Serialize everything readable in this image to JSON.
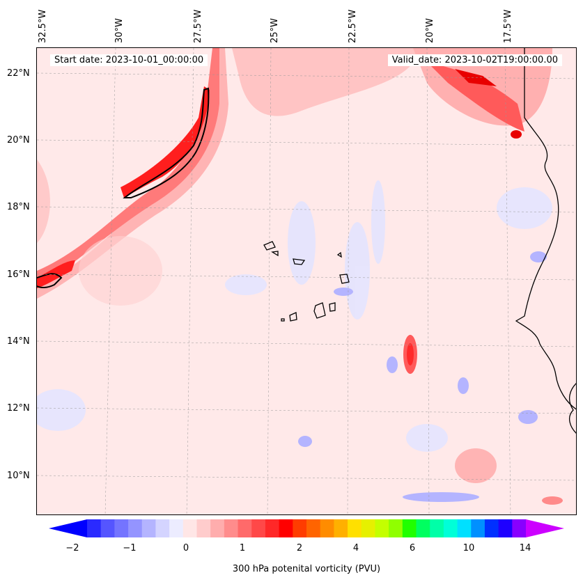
{
  "map": {
    "longitude_labels": [
      "32.5°W",
      "30°W",
      "27.5°W",
      "25°W",
      "22.5°W",
      "20°W",
      "17.5°W"
    ],
    "latitude_labels": [
      "22°N",
      "20°N",
      "18°N",
      "16°N",
      "14°N",
      "12°N",
      "10°N"
    ],
    "start_date": "Start date: 2023-10-01_00:00:00",
    "valid_date": "Valid_date: 2023-10-02T19:00:00.00"
  },
  "colorbar": {
    "label": "300 hPa potenital vorticity (PVU)",
    "ticks": [
      "−2",
      "−1",
      "0",
      "1",
      "2",
      "4",
      "6",
      "10",
      "14"
    ],
    "colors": [
      "#0000ff",
      "#2a2aff",
      "#5555ff",
      "#7474ff",
      "#9494ff",
      "#b4b4ff",
      "#d4d4ff",
      "#ececff",
      "#ffe6e6",
      "#ffcccc",
      "#ffadad",
      "#ff8c8c",
      "#ff6a6a",
      "#ff4848",
      "#ff2828",
      "#ff0000",
      "#ff3c00",
      "#ff6400",
      "#ff8c00",
      "#ffb000",
      "#ffe000",
      "#e6f000",
      "#c4ff00",
      "#90ff00",
      "#20ff00",
      "#00ff60",
      "#00ffa8",
      "#00ffd8",
      "#00e0ff",
      "#0090ff",
      "#0030ff",
      "#1e00ff",
      "#8800ff",
      "#cc00ff"
    ]
  }
}
